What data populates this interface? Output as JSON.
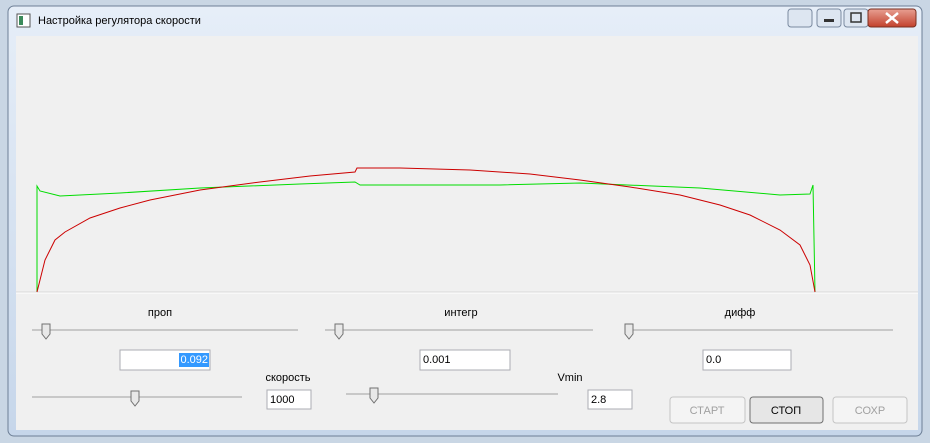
{
  "window": {
    "title": "Настройка регулятора скорости"
  },
  "controls": {
    "prop": {
      "label": "проп",
      "field": "0.092"
    },
    "integ": {
      "label": "интегр",
      "field": "0.001"
    },
    "diff": {
      "label": "дифф",
      "field": "0.0"
    },
    "speed": {
      "label": "скорость",
      "field": "1000"
    },
    "vmin": {
      "label": "Vmin",
      "field": "2.8"
    }
  },
  "buttons": [
    "СТАРТ",
    "СТОП",
    "СОХР"
  ]
}
